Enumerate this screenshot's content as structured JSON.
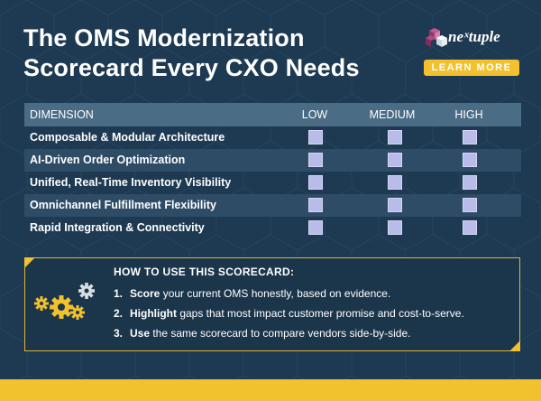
{
  "header": {
    "title_line1": "The OMS Modernization",
    "title_line2": "Scorecard Every CXO Needs"
  },
  "brand": {
    "logo_text": "neˣtuple",
    "logo_icon": "cube-cluster-icon",
    "cta_label": "LEARN MORE"
  },
  "table": {
    "columns": [
      "DIMENSION",
      "LOW",
      "MEDIUM",
      "HIGH"
    ],
    "rows": [
      "Composable & Modular Architecture",
      "AI-Driven Order Optimization",
      "Unified, Real-Time Inventory Visibility",
      "Omnichannel Fulfillment Flexibility",
      "Rapid Integration & Connectivity"
    ]
  },
  "howto": {
    "title": "HOW TO USE THIS SCORECARD:",
    "icon": "gears-icon",
    "steps": [
      {
        "num": "1.",
        "keyword": "Score",
        "text": " your current OMS honestly, based on evidence."
      },
      {
        "num": "2.",
        "keyword": "Highlight",
        "text": " gaps that most impact customer promise and cost-to-serve."
      },
      {
        "num": "3.",
        "keyword": "Use",
        "text": " the same scorecard to compare vendors side-by-side."
      }
    ]
  },
  "colors": {
    "background": "#1e3a52",
    "accent": "#f2c12e",
    "table_header": "#4a6c85",
    "checkbox": "#b9bbe8"
  }
}
